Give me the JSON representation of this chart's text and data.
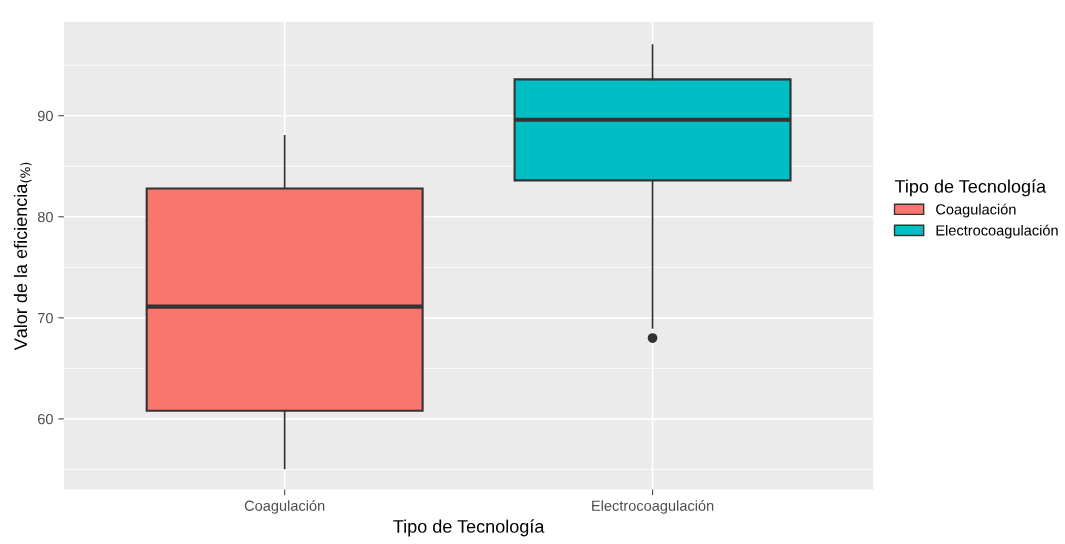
{
  "chart_data": {
    "type": "box",
    "xlabel": "Tipo de Tecnología",
    "ylabel": "Valor de la eficiencia$_{(%)}$",
    "legend_title": "Tipo de Tecnología",
    "legend": "right",
    "categories": [
      "Coagulación",
      "Electrocoagulación"
    ],
    "series": [
      {
        "name": "Coagulación",
        "color": "#f8766d",
        "boxes": [
          {
            "low": 55.1,
            "q1": 60.8,
            "median": 71.1,
            "q3": 82.8,
            "high": 88.0
          },
          null
        ]
      },
      {
        "name": "Electrocoagulación",
        "color": "#00bfc4",
        "boxes": [
          null,
          {
            "low": 69.0,
            "q1": 83.6,
            "median": 89.6,
            "q3": 93.6,
            "high": 97.0,
            "outliers": [
              68.0
            ]
          }
        ]
      }
    ],
    "ylim": [
      53.0,
      99.3
    ],
    "yticks": [
      60,
      70,
      80,
      90
    ],
    "grid": true
  }
}
